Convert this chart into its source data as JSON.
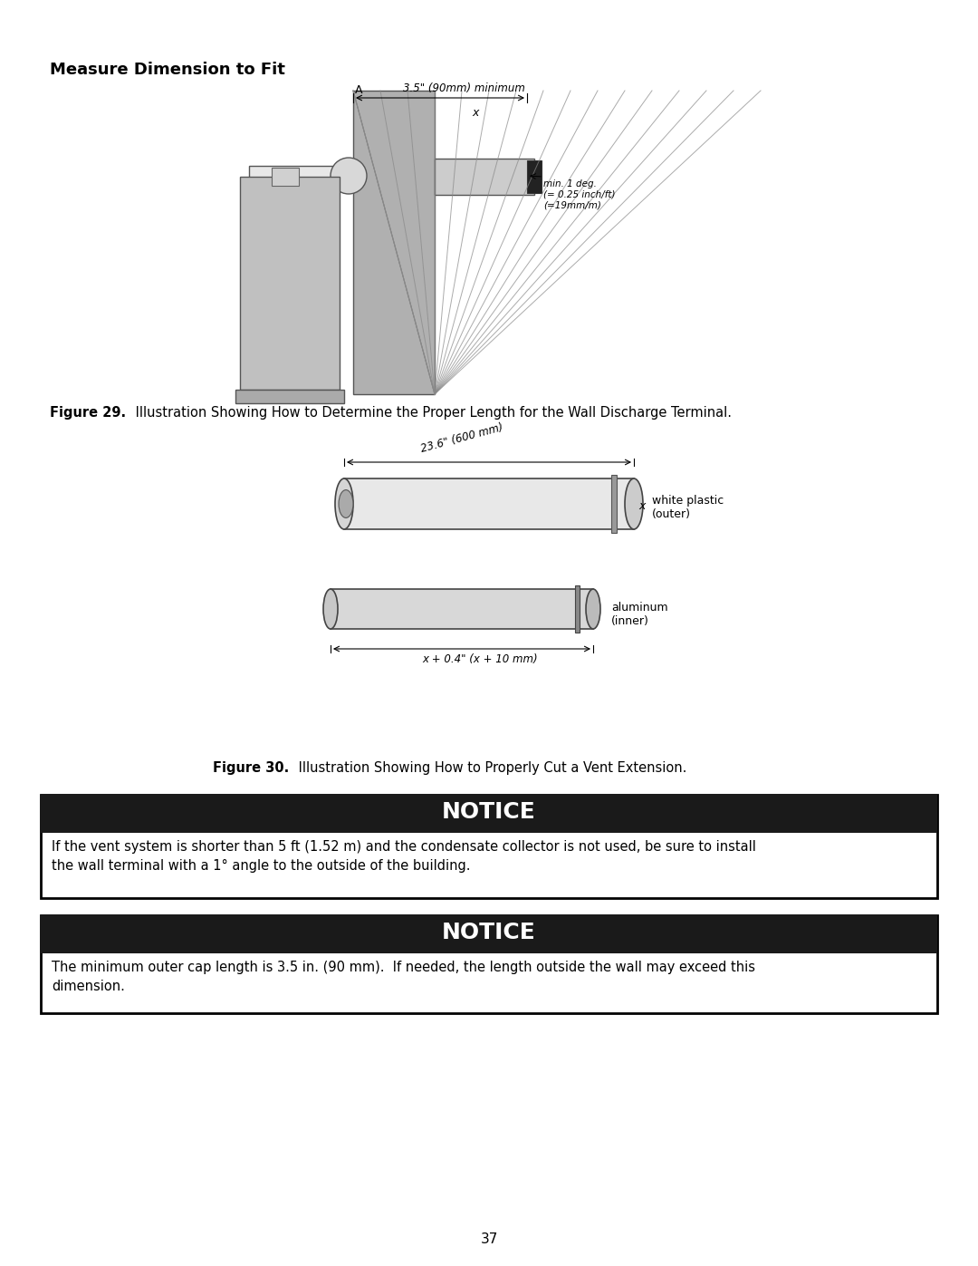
{
  "page_title": "Measure Dimension to Fit",
  "fig29_caption_bold": "Figure 29.",
  "fig29_caption_normal": " Illustration Showing How to Determine the Proper Length for the Wall Discharge Terminal.",
  "fig30_caption_bold": "Figure 30.",
  "fig30_caption_normal": " Illustration Showing How to Properly Cut a Vent Extension.",
  "notice1_title": "NOTICE",
  "notice1_body": "If the vent system is shorter than 5 ft (1.52 m) and the condensate collector is not used, be sure to install\nthe wall terminal with a 1° angle to the outside of the building.",
  "notice2_title": "NOTICE",
  "notice2_body": "The minimum outer cap length is 3.5 in. (90 mm).  If needed, the length outside the wall may exceed this\ndimension.",
  "page_number": "37",
  "bg_color": "#ffffff",
  "text_color": "#000000",
  "notice_header_bg": "#1a1a1a",
  "notice_header_text": "#ffffff",
  "notice_border_color": "#000000",
  "fig29_annotation_A": "A",
  "fig29_annotation_min": "3.5\" (90mm) minimum",
  "fig29_annotation_x": "x",
  "fig29_annotation_angle": "min. 1 deg.\n(= 0.25 inch/ft)\n(=19mm/m)",
  "fig30_label_white": "white plastic\n(outer)",
  "fig30_label_alum": "aluminum\n(inner)",
  "fig30_dim_outer": "23.6\" (600 mm)",
  "fig30_dim_inner": "x + 0.4\" (x + 10 mm)"
}
